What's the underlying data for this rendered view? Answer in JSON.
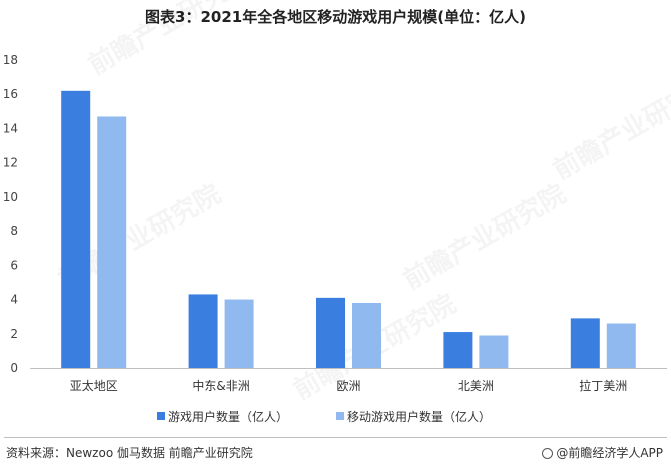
{
  "title": "图表3：2021年全各地区移动游戏用户规模(单位：亿人)",
  "source": "资料来源：Newzoo 伽马数据 前瞻产业研究院",
  "brand": "@前瞻经济学人APP",
  "watermark": "前瞻产业研究院",
  "colors": {
    "series1": "#3a7ee0",
    "series2": "#8fb9ef",
    "axis": "#bfbfbf"
  },
  "chart_data": {
    "type": "bar",
    "title": "图表3：2021年全各地区移动游戏用户规模(单位：亿人)",
    "xlabel": "",
    "ylabel": "",
    "categories": [
      "亚太地区",
      "中东&非洲",
      "欧洲",
      "北美洲",
      "拉丁美洲"
    ],
    "series": [
      {
        "name": "游戏用户数量（亿人）",
        "values": [
          16.2,
          4.3,
          4.1,
          2.1,
          2.9
        ]
      },
      {
        "name": "移动游戏用户数量（亿人）",
        "values": [
          14.7,
          4.0,
          3.8,
          1.9,
          2.6
        ]
      }
    ],
    "ylim": [
      0,
      18
    ],
    "yticks": [
      0,
      2,
      4,
      6,
      8,
      10,
      12,
      14,
      16,
      18
    ],
    "grid": false,
    "legend": "bottom"
  }
}
